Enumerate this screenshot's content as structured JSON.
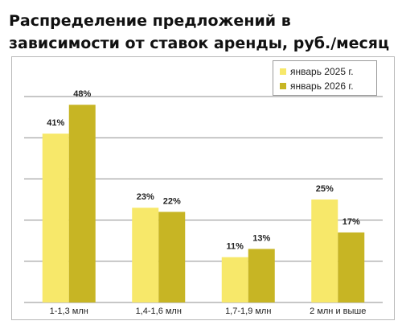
{
  "chart_data": {
    "type": "bar",
    "title": "Распределение предложений в зависимости от ставок аренды, руб./месяц",
    "categories": [
      "1-1,3 млн",
      "1,4-1,6 млн",
      "1,7-1,9 млн",
      "2 млн и выше"
    ],
    "series": [
      {
        "name": "январь 2025 г.",
        "values": [
          41,
          23,
          11,
          25
        ],
        "labels": [
          "41%",
          "23%",
          "11%",
          "25%"
        ],
        "color": "#f7e86a"
      },
      {
        "name": "январь 2026 г.",
        "values": [
          48,
          22,
          13,
          17
        ],
        "labels": [
          "48%",
          "22%",
          "13%",
          "17%"
        ],
        "color": "#c7b524"
      }
    ],
    "ylim": [
      0,
      50
    ],
    "grid": true,
    "legend_position": "top-right"
  }
}
